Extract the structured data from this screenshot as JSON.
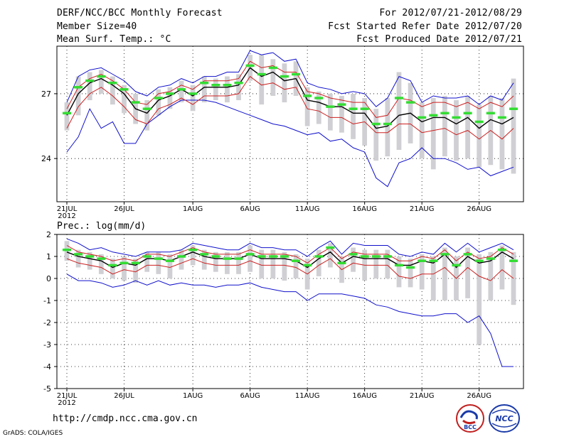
{
  "header": {
    "title": "DERF/NCC/BCC Monthly Forecast",
    "member_size": "Member Size=40",
    "variable": "Mean Surf. Temp.: °C",
    "forecast_period": "For 2012/07/21-2012/08/29",
    "started_refer": "Fcst Started Refer Date 2012/07/20",
    "produced": "Fcst Produced Date 2012/07/21"
  },
  "footer": {
    "url": "http://cmdp.ncc.cma.gov.cn",
    "grads_credit": "GrADS: COLA/IGES",
    "logo_bcc": "BCC",
    "logo_ncc": "NCC"
  },
  "colors": {
    "ensemble_mean": "#000000",
    "spread": "#cc2020",
    "envelope": "#1010cc",
    "observed_box": "#d0d0d4",
    "median": "#33dd33"
  },
  "chart_data": [
    {
      "id": "temperature",
      "type": "line",
      "title": "Mean Surf. Temp.: °C",
      "days": 40,
      "ylim": [
        22.0,
        29.2
      ],
      "yticks": [
        24,
        27
      ],
      "xticks": [
        {
          "day": 0,
          "label": "21JUL",
          "label2": "2012"
        },
        {
          "day": 5,
          "label": "26JUL"
        },
        {
          "day": 11,
          "label": "1AUG"
        },
        {
          "day": 16,
          "label": "6AUG"
        },
        {
          "day": 21,
          "label": "11AUG"
        },
        {
          "day": 26,
          "label": "16AUG"
        },
        {
          "day": 31,
          "label": "21AUG"
        },
        {
          "day": 36,
          "label": "26AUG"
        }
      ],
      "series": [
        {
          "name": "mean",
          "values": [
            26.0,
            27.0,
            27.5,
            27.7,
            27.4,
            27.0,
            26.3,
            26.1,
            26.7,
            26.9,
            27.2,
            26.9,
            27.3,
            27.3,
            27.3,
            27.4,
            28.2,
            27.8,
            28.0,
            27.6,
            27.7,
            26.7,
            26.6,
            26.4,
            26.4,
            26.1,
            26.1,
            25.4,
            25.5,
            26.0,
            26.1,
            25.7,
            25.9,
            25.9,
            25.6,
            25.9,
            25.4,
            25.8,
            25.6,
            25.9
          ]
        },
        {
          "name": "upper",
          "values": [
            26.3,
            27.3,
            27.7,
            27.9,
            27.6,
            27.2,
            26.6,
            26.5,
            27.0,
            27.1,
            27.4,
            27.2,
            27.6,
            27.6,
            27.6,
            27.7,
            28.5,
            28.2,
            28.3,
            28.0,
            28.0,
            27.1,
            27.0,
            26.8,
            26.7,
            26.6,
            26.6,
            25.9,
            26.0,
            26.8,
            26.7,
            26.4,
            26.6,
            26.6,
            26.4,
            26.6,
            26.3,
            26.6,
            26.4,
            26.9
          ]
        },
        {
          "name": "lower",
          "values": [
            25.4,
            26.4,
            27.0,
            27.3,
            26.9,
            26.4,
            25.8,
            25.6,
            26.3,
            26.5,
            26.8,
            26.5,
            26.9,
            26.9,
            26.9,
            27.0,
            27.8,
            27.4,
            27.5,
            27.2,
            27.3,
            26.3,
            26.2,
            25.9,
            25.9,
            25.6,
            25.7,
            25.2,
            25.2,
            25.6,
            25.6,
            25.2,
            25.3,
            25.4,
            25.1,
            25.3,
            24.9,
            25.3,
            24.9,
            25.4
          ]
        },
        {
          "name": "max",
          "values": [
            26.6,
            27.8,
            28.1,
            28.2,
            27.9,
            27.6,
            27.1,
            26.9,
            27.3,
            27.4,
            27.7,
            27.5,
            27.8,
            27.8,
            28.0,
            28.0,
            29.0,
            28.8,
            28.9,
            28.5,
            28.6,
            27.5,
            27.3,
            27.2,
            27.0,
            27.1,
            27.0,
            26.4,
            26.8,
            27.8,
            27.6,
            26.6,
            26.9,
            26.8,
            26.8,
            26.9,
            26.5,
            26.9,
            26.7,
            27.5
          ]
        },
        {
          "name": "min",
          "values": [
            24.3,
            25.0,
            26.3,
            25.4,
            25.7,
            24.7,
            24.7,
            25.6,
            26.0,
            26.4,
            26.7,
            26.7,
            26.7,
            26.6,
            26.4,
            26.2,
            26.0,
            25.8,
            25.6,
            25.5,
            25.3,
            25.1,
            25.2,
            24.8,
            24.9,
            24.5,
            24.3,
            23.1,
            22.7,
            23.8,
            24.0,
            24.5,
            24.0,
            24.0,
            23.8,
            23.5,
            23.6,
            23.2,
            23.4,
            23.6
          ]
        },
        {
          "name": "box_top",
          "values": [
            26.6,
            27.8,
            28.0,
            28.1,
            27.8,
            27.4,
            27.0,
            26.7,
            27.2,
            27.3,
            27.6,
            27.4,
            27.8,
            27.7,
            27.8,
            27.9,
            28.8,
            28.8,
            28.6,
            28.4,
            28.5,
            27.3,
            27.1,
            27.0,
            26.9,
            27.0,
            26.8,
            26.3,
            26.8,
            28.0,
            27.5,
            26.6,
            26.8,
            26.9,
            26.7,
            26.9,
            26.5,
            26.9,
            26.8,
            27.7
          ]
        },
        {
          "name": "box_bottom",
          "values": [
            25.3,
            26.0,
            26.7,
            27.0,
            26.5,
            26.1,
            25.6,
            25.3,
            26.0,
            26.3,
            26.6,
            26.2,
            26.6,
            26.7,
            26.6,
            26.7,
            27.6,
            26.5,
            26.9,
            26.6,
            26.9,
            25.5,
            25.6,
            25.3,
            25.2,
            24.9,
            24.6,
            23.9,
            24.1,
            24.4,
            24.7,
            24.0,
            23.5,
            24.1,
            23.9,
            24.0,
            23.6,
            23.7,
            23.5,
            23.3
          ]
        },
        {
          "name": "median",
          "values": [
            26.1,
            27.3,
            27.6,
            27.8,
            27.5,
            27.2,
            26.6,
            26.3,
            26.8,
            27.0,
            27.2,
            27.0,
            27.5,
            27.4,
            27.4,
            27.5,
            28.3,
            27.9,
            28.2,
            27.8,
            27.9,
            26.9,
            26.8,
            26.4,
            26.5,
            26.3,
            26.3,
            25.6,
            25.6,
            26.8,
            26.6,
            25.9,
            26.0,
            26.1,
            25.9,
            26.1,
            25.7,
            26.1,
            25.9,
            26.3
          ]
        }
      ]
    },
    {
      "id": "precipitation",
      "type": "line",
      "title": "Prec.: log(mm/d)",
      "days": 40,
      "ylim": [
        -5,
        2
      ],
      "yticks": [
        -5,
        -4,
        -3,
        -2,
        -1,
        0,
        1,
        2
      ],
      "xticks": [
        {
          "day": 0,
          "label": "21JUL",
          "label2": "2012"
        },
        {
          "day": 5,
          "label": "26JUL"
        },
        {
          "day": 11,
          "label": "1AUG"
        },
        {
          "day": 16,
          "label": "6AUG"
        },
        {
          "day": 21,
          "label": "11AUG"
        },
        {
          "day": 26,
          "label": "16AUG"
        },
        {
          "day": 31,
          "label": "21AUG"
        },
        {
          "day": 36,
          "label": "26AUG"
        }
      ],
      "series": [
        {
          "name": "mean",
          "values": [
            1.2,
            1.0,
            0.9,
            0.8,
            0.5,
            0.7,
            0.6,
            0.9,
            0.9,
            0.8,
            1.0,
            1.2,
            1.0,
            0.9,
            0.9,
            0.9,
            1.1,
            0.9,
            0.9,
            0.9,
            0.8,
            0.5,
            0.9,
            1.2,
            0.7,
            1.0,
            0.9,
            0.9,
            0.9,
            0.6,
            0.6,
            0.8,
            0.7,
            1.1,
            0.5,
            1.0,
            0.7,
            0.8,
            1.2,
            0.9
          ]
        },
        {
          "name": "upper",
          "values": [
            1.5,
            1.2,
            1.1,
            1.0,
            0.8,
            0.9,
            0.8,
            1.1,
            1.1,
            1.0,
            1.2,
            1.4,
            1.2,
            1.1,
            1.1,
            1.1,
            1.3,
            1.1,
            1.1,
            1.1,
            1.0,
            0.7,
            1.1,
            1.4,
            0.9,
            1.2,
            1.1,
            1.1,
            1.1,
            0.8,
            0.8,
            1.0,
            0.9,
            1.3,
            0.8,
            1.2,
            0.9,
            1.0,
            1.4,
            1.1
          ]
        },
        {
          "name": "lower",
          "values": [
            0.9,
            0.7,
            0.6,
            0.5,
            0.2,
            0.4,
            0.3,
            0.6,
            0.6,
            0.5,
            0.7,
            0.9,
            0.7,
            0.6,
            0.6,
            0.6,
            0.8,
            0.6,
            0.6,
            0.6,
            0.5,
            0.2,
            0.6,
            0.9,
            0.4,
            0.7,
            0.6,
            0.6,
            0.6,
            0.1,
            0.0,
            0.2,
            0.2,
            0.5,
            0.0,
            0.5,
            0.1,
            -0.1,
            0.4,
            0.0
          ]
        },
        {
          "name": "max",
          "values": [
            1.8,
            1.6,
            1.3,
            1.4,
            1.2,
            1.1,
            1.0,
            1.2,
            1.2,
            1.2,
            1.3,
            1.6,
            1.5,
            1.4,
            1.3,
            1.3,
            1.6,
            1.4,
            1.4,
            1.3,
            1.3,
            1.0,
            1.4,
            1.7,
            1.1,
            1.6,
            1.5,
            1.5,
            1.5,
            1.1,
            1.0,
            1.2,
            1.1,
            1.6,
            1.2,
            1.6,
            1.2,
            1.4,
            1.6,
            1.3
          ]
        },
        {
          "name": "min",
          "values": [
            0.2,
            -0.1,
            -0.1,
            -0.2,
            -0.4,
            -0.3,
            -0.1,
            -0.3,
            -0.1,
            -0.3,
            -0.2,
            -0.3,
            -0.3,
            -0.4,
            -0.3,
            -0.3,
            -0.2,
            -0.4,
            -0.5,
            -0.6,
            -0.6,
            -1.0,
            -0.7,
            -0.7,
            -0.7,
            -0.8,
            -0.9,
            -1.2,
            -1.3,
            -1.5,
            -1.6,
            -1.7,
            -1.7,
            -1.6,
            -1.6,
            -2.0,
            -1.7,
            -2.5,
            -4.0,
            -4.0
          ]
        },
        {
          "name": "box_top",
          "values": [
            1.7,
            1.3,
            1.2,
            1.1,
            0.9,
            1.0,
            0.9,
            1.2,
            1.2,
            1.1,
            1.3,
            1.5,
            1.3,
            1.2,
            1.2,
            1.2,
            1.5,
            1.3,
            1.3,
            1.2,
            1.1,
            0.9,
            1.3,
            1.6,
            1.0,
            1.4,
            1.3,
            1.3,
            1.3,
            1.0,
            0.9,
            1.1,
            1.0,
            1.4,
            1.0,
            1.4,
            1.1,
            1.2,
            1.5,
            1.2
          ]
        },
        {
          "name": "box_bottom",
          "values": [
            0.8,
            0.5,
            0.4,
            0.2,
            0.0,
            -0.1,
            -0.2,
            0.3,
            0.2,
            0.0,
            0.4,
            0.6,
            0.4,
            0.3,
            0.2,
            0.2,
            0.3,
            0.0,
            0.0,
            -0.1,
            0.0,
            -0.5,
            0.1,
            0.5,
            -0.2,
            0.3,
            -0.1,
            0.0,
            0.0,
            -0.4,
            -0.4,
            -0.5,
            -1.0,
            -1.0,
            -1.0,
            -0.9,
            -3.0,
            -1.0,
            -0.5,
            -1.2
          ]
        },
        {
          "name": "median",
          "values": [
            1.3,
            1.1,
            1.0,
            0.9,
            0.6,
            0.7,
            0.7,
            1.0,
            0.9,
            0.8,
            1.0,
            1.3,
            1.1,
            1.0,
            0.9,
            0.9,
            1.1,
            1.0,
            1.0,
            1.0,
            0.8,
            0.6,
            1.0,
            1.4,
            0.7,
            1.1,
            1.0,
            1.0,
            1.0,
            0.6,
            0.5,
            0.8,
            0.8,
            1.1,
            0.6,
            1.1,
            0.8,
            0.9,
            1.3,
            0.8
          ]
        }
      ]
    }
  ]
}
